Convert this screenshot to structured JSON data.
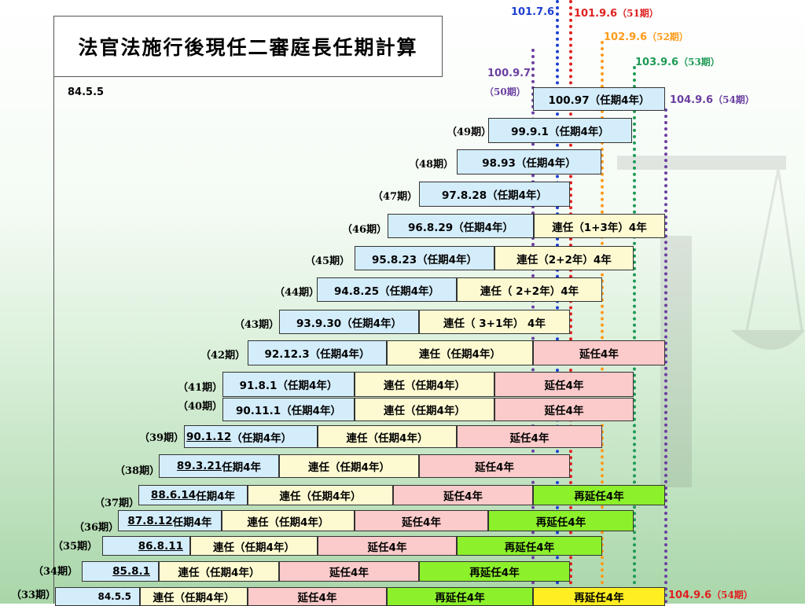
{
  "title": "法官法施行後現任二審庭長任期計算",
  "start_label": "84.5.5",
  "markers": {
    "m1": {
      "date": "101.7.6"
    },
    "m2": {
      "date": "101.9.6",
      "period": "（51期）"
    },
    "m3": {
      "date": "102.9.6",
      "period": "（52期）"
    },
    "m4": {
      "date": "103.9.6",
      "period": "（53期）"
    },
    "m5": {
      "date": "100.9.7",
      "period": "（50期）"
    },
    "m6_top": {
      "date": "104.9.6",
      "period": "（54期）"
    },
    "m6_bottom": {
      "date": "104.9.6",
      "period": "（54期）"
    }
  },
  "colors": {
    "blue": "#d4edfb",
    "yellow": "#fdfad2",
    "pink": "#fbcaca",
    "green": "#8cf02b",
    "gold": "#ffee22",
    "line_purple": "#6b3fa0",
    "line_blue": "#1c3fd1",
    "line_red": "#e02020",
    "line_orange": "#ff9a1a",
    "line_green": "#1e9a55"
  },
  "rows": [
    {
      "term": "",
      "segs": [
        "100.97（任期4年）"
      ]
    },
    {
      "term": "（49期）",
      "segs": [
        "99.9.1（任期4年）"
      ]
    },
    {
      "term": "（48期）",
      "segs": [
        "98.93（任期4年）"
      ]
    },
    {
      "term": "（47期）",
      "segs": [
        "97.8.28（任期4年）"
      ]
    },
    {
      "term": "（46期）",
      "segs": [
        "96.8.29（任期4年）",
        "連任（1+3年）4年"
      ]
    },
    {
      "term": "（45期）",
      "segs": [
        "95.8.23（任期4年）",
        "連任（2+2年）4年"
      ]
    },
    {
      "term": "（44期）",
      "segs": [
        "94.8.25（任期4年）",
        "連任（ 2+2年）4年"
      ]
    },
    {
      "term": "（43期）",
      "segs": [
        "93.9.30（任期4年）",
        "連任（ 3+1年） 4年"
      ]
    },
    {
      "term": "（42期）",
      "segs": [
        "92.12.3（任期4年）",
        "連任（任期4年）",
        "延任4年"
      ]
    },
    {
      "term": "（41期）",
      "segs": [
        "91.8.1（任期4年）",
        "連任（任期4年）",
        "延任4年"
      ]
    },
    {
      "term": "（40期）",
      "segs": [
        "90.11.1（任期4年）",
        "連任（任期4年）",
        "延任4年"
      ]
    },
    {
      "term": "（39期）",
      "segs": [
        "90.1.12",
        "（任期4年）",
        "連任（任期4年）",
        "延任4年"
      ]
    },
    {
      "term": "（38期）",
      "segs": [
        "89.3.21",
        "任期4年",
        "連任（任期4年）",
        "延任4年"
      ]
    },
    {
      "term": "（37期）",
      "segs": [
        "88.6.14",
        " 任期4年",
        "連任（任期4年）",
        "延任4年",
        "再延任4年"
      ]
    },
    {
      "term": "（36期）",
      "segs": [
        "87.8.12",
        "任期4年",
        "連任（任期4年）",
        "延任4年",
        "再延任4年"
      ]
    },
    {
      "term": "（35期）",
      "segs": [
        "86.8.11",
        "連任（任期4年）",
        "延任4年",
        "再延任4年"
      ]
    },
    {
      "term": "（34期）",
      "segs": [
        "85.8.1",
        "連任（任期4年）",
        "延任4年",
        "再延任4年"
      ]
    },
    {
      "term": "（33期）",
      "segs": [
        "84.5.5",
        "連任（任期4年）",
        "延任4年",
        "再延任4年",
        "再延任4年"
      ]
    }
  ]
}
